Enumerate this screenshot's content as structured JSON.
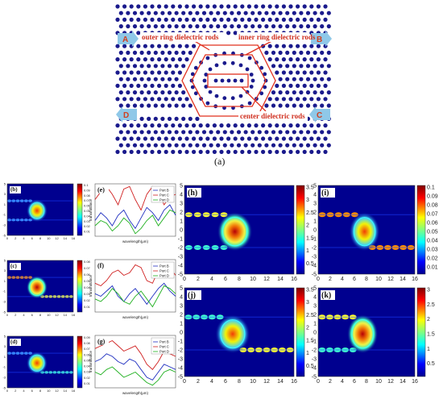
{
  "figure": {
    "caption_a": "(a)",
    "schematic": {
      "labels": {
        "outer": "outer ring dielectric rods",
        "inner": "inner ring dielectric rods",
        "center": "center dielectric rods"
      },
      "ports": [
        "A",
        "B",
        "D",
        "C"
      ],
      "colors": {
        "rod": "#1a1a8c",
        "outline": "#e0301e",
        "arrow": "#8fc8e8",
        "arrow_text": "#d04020"
      }
    },
    "panels": {
      "b": {
        "label": "(b)",
        "xticks": [
          "0",
          "2",
          "4",
          "6",
          "8",
          "10",
          "12",
          "14",
          "16"
        ],
        "yticks": [
          "5",
          "4",
          "3",
          "2",
          "1",
          "0",
          "-1",
          "-2",
          "-3",
          "-4",
          "-5"
        ],
        "cticks": [
          "0.1",
          "0.09",
          "0.08",
          "0.07",
          "0.06",
          "0.05",
          "0.04",
          "0.03",
          "0.02",
          "0.01"
        ]
      },
      "c": {
        "label": "(c)",
        "xticks": [
          "0",
          "2",
          "4",
          "6",
          "8",
          "10",
          "12",
          "14",
          "16"
        ],
        "yticks": [
          "5",
          "4",
          "3",
          "2",
          "1",
          "0",
          "-1",
          "-2",
          "-3",
          "-4",
          "-5"
        ],
        "cticks": [
          "0.08",
          "0.07",
          "0.06",
          "0.05",
          "0.04",
          "0.03",
          "0.02",
          "0.01"
        ]
      },
      "d": {
        "label": "(d)",
        "xticks": [
          "0",
          "2",
          "4",
          "6",
          "8",
          "10",
          "12",
          "14",
          "16"
        ],
        "yticks": [
          "5",
          "4",
          "3",
          "2",
          "1",
          "0",
          "-1",
          "-2",
          "-3",
          "-4",
          "-5"
        ],
        "cticks": [
          "0.09",
          "0.08",
          "0.07",
          "0.06",
          "0.05",
          "0.04",
          "0.03",
          "0.02",
          "0.01"
        ]
      },
      "h": {
        "label": "(h)",
        "xticks": [
          "0",
          "2",
          "4",
          "6",
          "8",
          "10",
          "12",
          "14",
          "16"
        ],
        "yticks": [
          "5",
          "4",
          "3",
          "2",
          "1",
          "0",
          "-1",
          "-2",
          "-3",
          "-4",
          "-5"
        ],
        "cticks": [
          "3.5",
          "3",
          "2.5",
          "2",
          "1.5",
          "1",
          "0.5"
        ]
      },
      "i": {
        "label": "(i)",
        "xticks": [
          "0",
          "2",
          "4",
          "6",
          "8",
          "10",
          "12",
          "14",
          "16"
        ],
        "yticks": [
          "5",
          "4",
          "3",
          "2",
          "1",
          "0",
          "-1",
          "-2",
          "-3",
          "-4",
          "-5"
        ],
        "cticks": [
          "0.1",
          "0.09",
          "0.08",
          "0.07",
          "0.06",
          "0.05",
          "0.04",
          "0.03",
          "0.02",
          "0.01"
        ]
      },
      "j": {
        "label": "(j)",
        "xticks": [
          "0",
          "2",
          "4",
          "6",
          "8",
          "10",
          "12",
          "14",
          "16"
        ],
        "yticks": [
          "5",
          "4",
          "3",
          "2",
          "1",
          "0",
          "-1",
          "-2",
          "-3",
          "-4",
          "-5"
        ],
        "cticks": [
          "3.5",
          "3",
          "2.5",
          "2",
          "1.5",
          "1",
          "0.5"
        ]
      },
      "k": {
        "label": "(k)",
        "xticks": [
          "0",
          "2",
          "4",
          "6",
          "8",
          "10",
          "12",
          "14",
          "16"
        ],
        "yticks": [
          "5",
          "4",
          "3",
          "2",
          "1",
          "0",
          "-1",
          "-2",
          "-3",
          "-4",
          "-5"
        ],
        "cticks": [
          "3",
          "2.5",
          "2",
          "1.5",
          "1",
          "0.5"
        ]
      }
    },
    "spectra": {
      "e": {
        "label": "(e)",
        "legend": [
          "Port B",
          "Port C",
          "Port D"
        ],
        "ylabel": "transmittance",
        "xlabel": "wavelength(μm)"
      },
      "f": {
        "label": "(f)",
        "legend": [
          "Port B",
          "Port C",
          "Port D"
        ],
        "ylabel": "transmittance",
        "xlabel": "wavelength(μm)"
      },
      "g": {
        "label": "(g)",
        "legend": [
          "Port B",
          "Port C",
          "Port D"
        ],
        "ylabel": "transmittance",
        "xlabel": "wavelength(μm)"
      }
    }
  }
}
